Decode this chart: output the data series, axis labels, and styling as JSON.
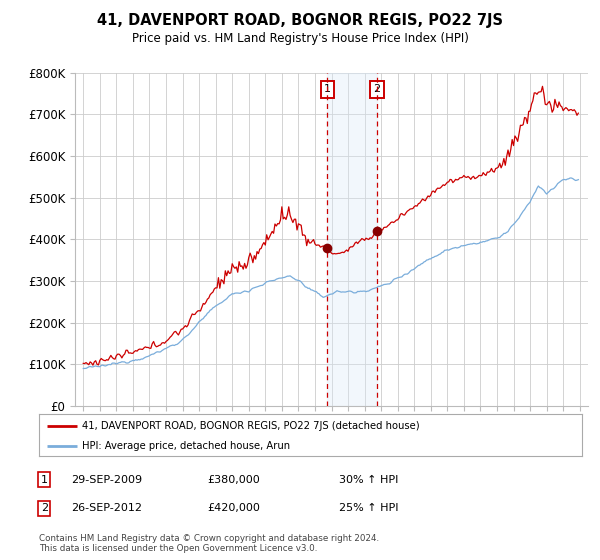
{
  "title": "41, DAVENPORT ROAD, BOGNOR REGIS, PO22 7JS",
  "subtitle": "Price paid vs. HM Land Registry's House Price Index (HPI)",
  "ylim": [
    0,
    800000
  ],
  "yticks": [
    0,
    100000,
    200000,
    300000,
    400000,
    500000,
    600000,
    700000,
    800000
  ],
  "ytick_labels": [
    "£0",
    "£100K",
    "£200K",
    "£300K",
    "£400K",
    "£500K",
    "£600K",
    "£700K",
    "£800K"
  ],
  "sale1_date": 2009.75,
  "sale1_price": 380000,
  "sale1_label": "1",
  "sale2_date": 2012.75,
  "sale2_price": 420000,
  "sale2_label": "2",
  "hpi_color": "#7aaddb",
  "price_color": "#cc0000",
  "shade_color": "#daeaf7",
  "vline_color": "#cc0000",
  "marker_color": "#880000",
  "background_color": "#ffffff",
  "grid_color": "#cccccc",
  "legend1_text": "41, DAVENPORT ROAD, BOGNOR REGIS, PO22 7JS (detached house)",
  "legend2_text": "HPI: Average price, detached house, Arun",
  "table_row1": [
    "1",
    "29-SEP-2009",
    "£380,000",
    "30% ↑ HPI"
  ],
  "table_row2": [
    "2",
    "26-SEP-2012",
    "£420,000",
    "25% ↑ HPI"
  ],
  "footnote": "Contains HM Land Registry data © Crown copyright and database right 2024.\nThis data is licensed under the Open Government Licence v3.0.",
  "xlim_start": 1994.5,
  "xlim_end": 2025.5
}
